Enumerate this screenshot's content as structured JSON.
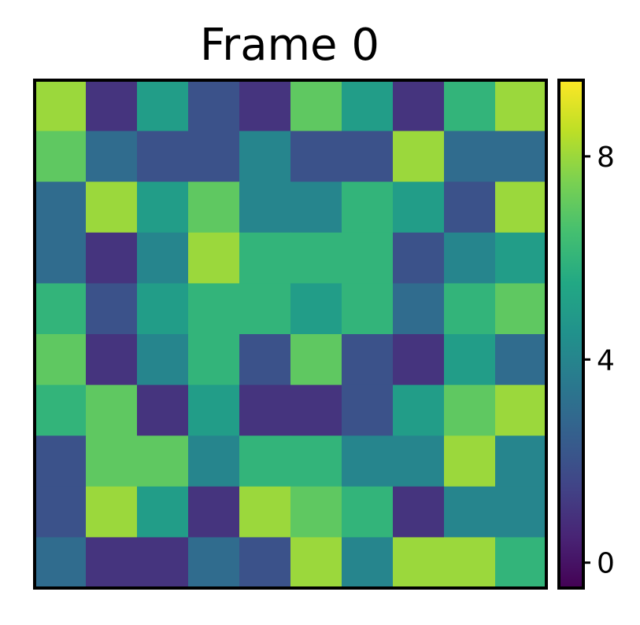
{
  "chart_data": {
    "type": "heatmap",
    "title": "Frame 0",
    "xlabel": "",
    "ylabel": "",
    "rows": 10,
    "cols": 10,
    "values": [
      [
        8,
        1,
        5,
        2,
        1,
        7,
        5,
        1,
        6,
        8
      ],
      [
        7,
        3,
        2,
        2,
        4,
        2,
        2,
        8,
        3,
        3
      ],
      [
        3,
        8,
        5,
        7,
        4,
        4,
        6,
        5,
        2,
        8
      ],
      [
        3,
        1,
        4,
        8,
        6,
        6,
        6,
        2,
        4,
        5
      ],
      [
        6,
        2,
        5,
        6,
        6,
        5,
        6,
        3,
        6,
        7
      ],
      [
        7,
        1,
        4,
        6,
        2,
        7,
        2,
        1,
        5,
        3
      ],
      [
        6,
        7,
        1,
        5,
        1,
        1,
        2,
        5,
        7,
        8
      ],
      [
        2,
        7,
        7,
        4,
        6,
        6,
        4,
        4,
        8,
        4
      ],
      [
        2,
        8,
        5,
        1,
        8,
        7,
        6,
        1,
        4,
        4
      ],
      [
        3,
        1,
        1,
        3,
        2,
        8,
        4,
        8,
        8,
        6
      ]
    ],
    "colormap": "viridis",
    "vmin": -0.5,
    "vmax": 9.5,
    "colorbar": {
      "ticks": [
        0,
        4,
        8
      ],
      "tick_labels": [
        "0",
        "4",
        "8"
      ],
      "placement": "right"
    },
    "grid": false
  }
}
